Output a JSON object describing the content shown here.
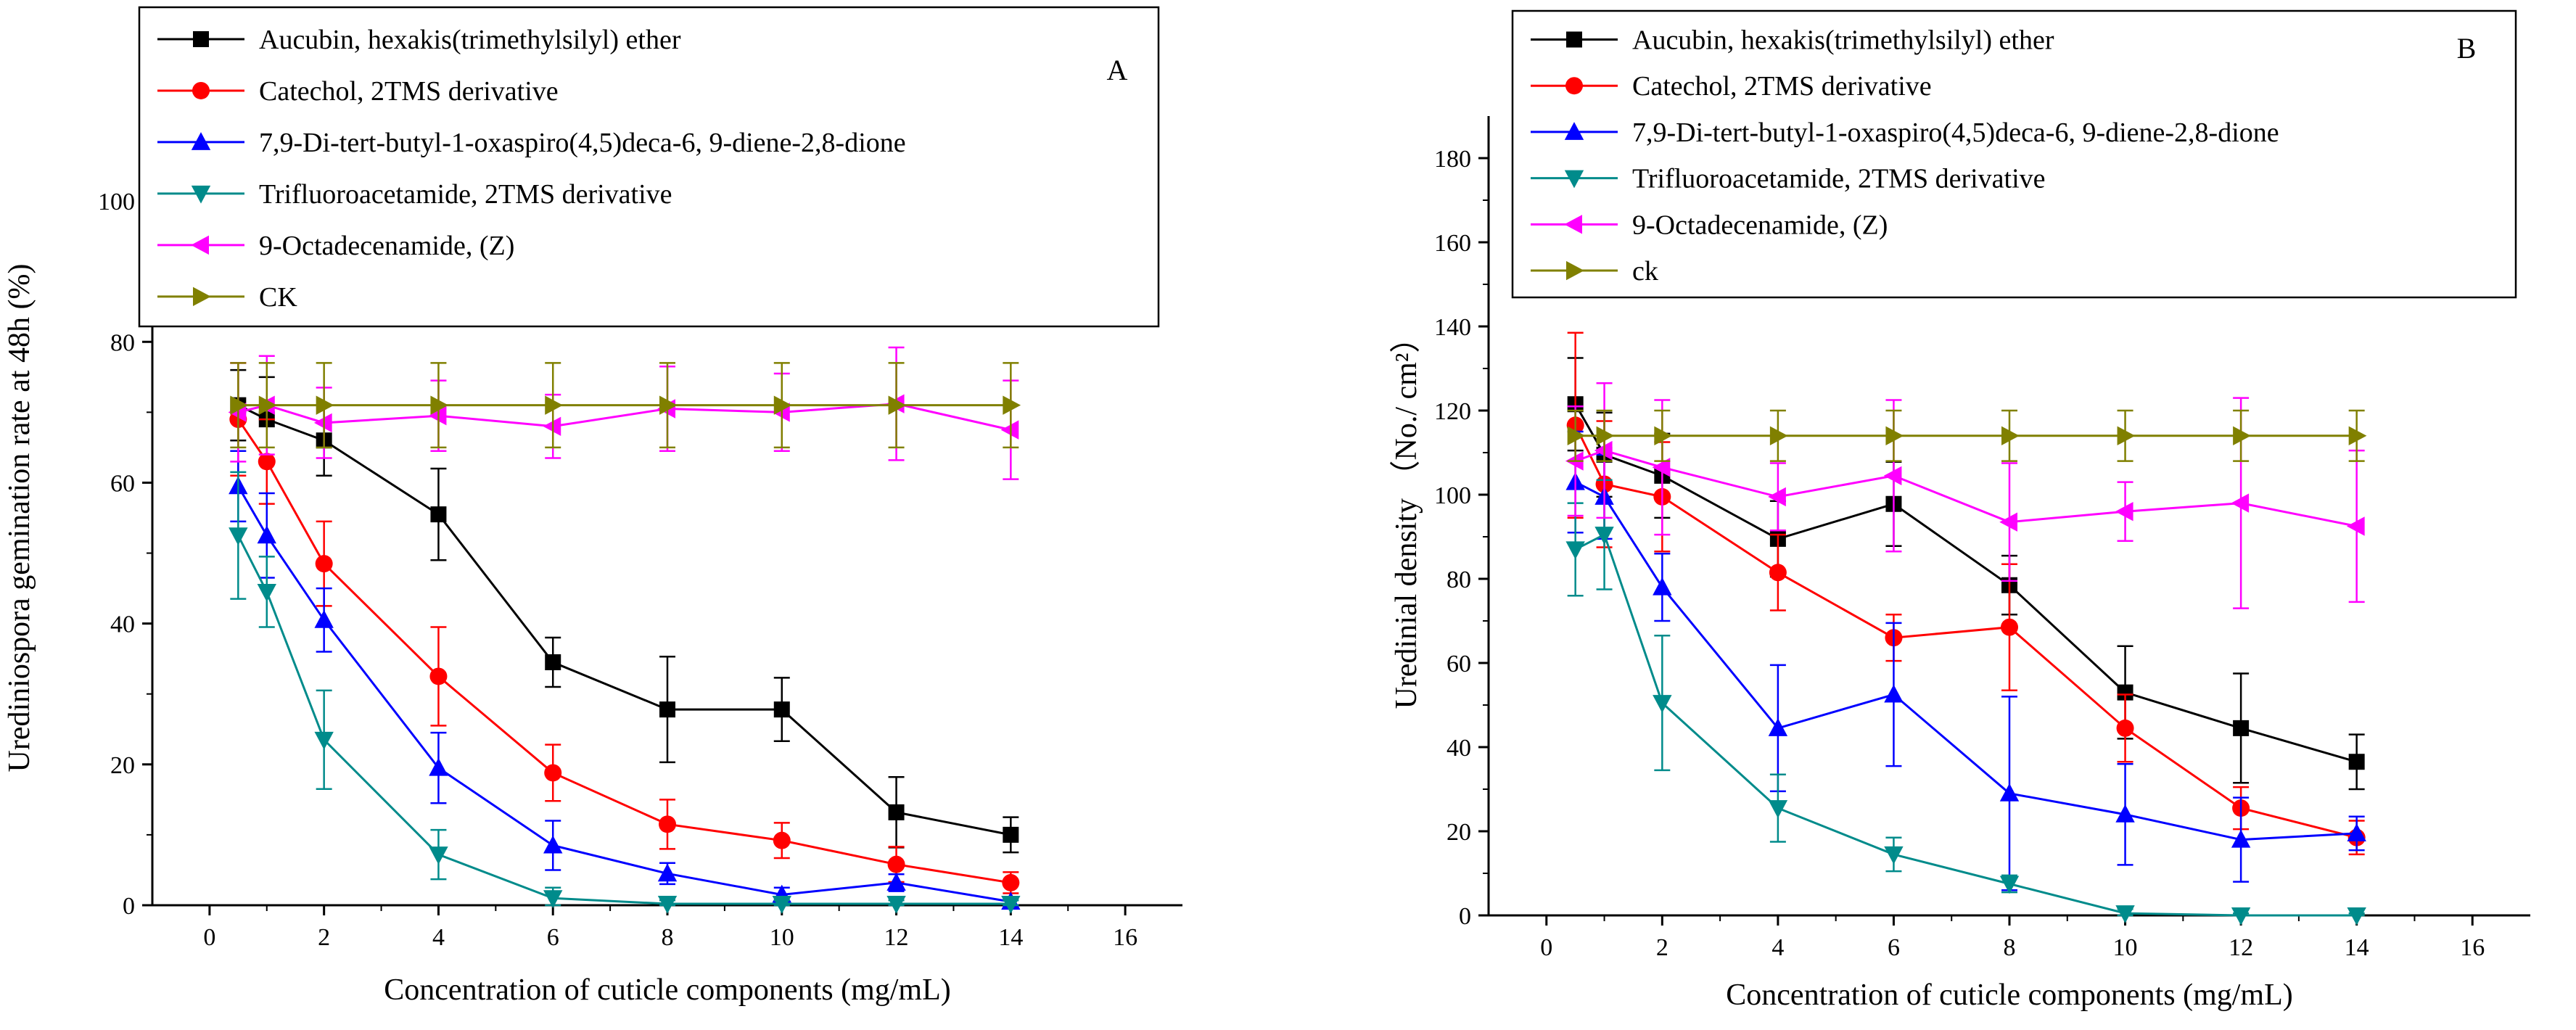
{
  "chart_data": [
    {
      "type": "line",
      "panel_label": "A",
      "title": "",
      "xlabel": "Concentration of cuticle components (mg/mL)",
      "ylabel": "Urediniospora gemination rate at 48h (%)",
      "xlim": [
        -1,
        17
      ],
      "ylim": [
        0,
        110
      ],
      "xticks": [
        "0",
        "2",
        "4",
        "6",
        "8",
        "10",
        "12",
        "14",
        "16"
      ],
      "yticks": [
        "0",
        "20",
        "40",
        "60",
        "80",
        "100"
      ],
      "legend_position": "top",
      "x": [
        0.5,
        1,
        2,
        4,
        6,
        8,
        10,
        12,
        14
      ],
      "series": [
        {
          "name": "Aucubin, hexakis(trimethylsilyl) ether",
          "color": "#000000",
          "marker": "square",
          "values": [
            71,
            69,
            66,
            55.5,
            34.5,
            27.8,
            27.8,
            13.2,
            10
          ],
          "errors": [
            5,
            6,
            5,
            6.5,
            3.5,
            7.5,
            4.5,
            5,
            2.5
          ]
        },
        {
          "name": "Catechol, 2TMS derivative",
          "color": "#ff0000",
          "marker": "circle",
          "values": [
            69,
            63,
            48.5,
            32.5,
            18.8,
            11.5,
            9.2,
            5.8,
            3.2
          ],
          "errors": [
            8,
            6,
            6,
            7,
            4,
            3.5,
            2.5,
            2.5,
            1.5
          ]
        },
        {
          "name": "7,9-Di-tert-butyl-1-oxaspiro(4,5)deca-6, 9-diene-2,8-dione",
          "color": "#0000ff",
          "marker": "triangle-up",
          "values": [
            59.5,
            52.5,
            40.5,
            19.5,
            8.5,
            4.5,
            1.5,
            3.2,
            0.5
          ],
          "errors": [
            5,
            6,
            4.5,
            5,
            3.5,
            1.5,
            1,
            1.2,
            0.5
          ]
        },
        {
          "name": "Trifluoroacetamide, 2TMS derivative",
          "color": "#008b8b",
          "marker": "triangle-down",
          "values": [
            52.5,
            44.5,
            23.5,
            7.2,
            1,
            0.2,
            0.2,
            0.2,
            0.2
          ],
          "errors": [
            9,
            5,
            7,
            3.5,
            1.5,
            0.5,
            0.5,
            0.5,
            0.5
          ]
        },
        {
          "name": "9-Octadecenamide, (Z)",
          "color": "#ff00ff",
          "marker": "triangle-left",
          "values": [
            70,
            71,
            68.5,
            69.5,
            68,
            70.5,
            70,
            71.2,
            67.5
          ],
          "errors": [
            7,
            7,
            5,
            5,
            4.5,
            6,
            5.5,
            8,
            7
          ]
        },
        {
          "name": "CK",
          "color": "#808000",
          "marker": "triangle-right",
          "values": [
            71,
            71,
            71,
            71,
            71,
            71,
            71,
            71,
            71
          ],
          "errors": [
            6,
            6,
            6,
            6,
            6,
            6,
            6,
            6,
            6
          ]
        }
      ]
    },
    {
      "type": "line",
      "panel_label": "B",
      "title": "",
      "xlabel": "Concentration of cuticle components (mg/mL)",
      "ylabel": "Uredinial density （No./ cm²）",
      "xlim": [
        -1,
        17
      ],
      "ylim": [
        0,
        190
      ],
      "xticks": [
        "0",
        "2",
        "4",
        "6",
        "8",
        "10",
        "12",
        "14",
        "16"
      ],
      "yticks": [
        "0",
        "20",
        "40",
        "60",
        "80",
        "100",
        "120",
        "140",
        "160",
        "180"
      ],
      "legend_position": "top",
      "x": [
        0.5,
        1,
        2,
        4,
        6,
        8,
        10,
        12,
        14
      ],
      "series": [
        {
          "name": "Aucubin, hexakis(trimethylsilyl) ether",
          "color": "#000000",
          "marker": "square",
          "values": [
            121.5,
            109.5,
            104.5,
            89.5,
            97.8,
            78.5,
            53,
            44.5,
            36.5
          ],
          "errors": [
            11,
            10,
            10,
            9,
            10,
            7,
            11,
            13,
            6.5
          ]
        },
        {
          "name": "Catechol, 2TMS derivative",
          "color": "#ff0000",
          "marker": "circle",
          "values": [
            116.5,
            102.5,
            99.5,
            81.5,
            66,
            68.5,
            44.5,
            25.5,
            18.5
          ],
          "errors": [
            22,
            15,
            13,
            9,
            5.5,
            15,
            8,
            5,
            4
          ]
        },
        {
          "name": "7,9-Di-tert-butyl-1-oxaspiro(4,5)deca-6, 9-diene-2,8-dione",
          "color": "#0000ff",
          "marker": "triangle-up",
          "values": [
            103,
            99.5,
            78,
            44.5,
            52.5,
            29,
            24,
            18,
            19.5
          ],
          "errors": [
            12,
            10,
            8,
            15,
            17,
            23,
            12,
            10,
            4
          ]
        },
        {
          "name": "Trifluoroacetamide, 2TMS derivative",
          "color": "#008b8b",
          "marker": "triangle-down",
          "values": [
            87,
            90.5,
            50.5,
            25.5,
            14.5,
            7.5,
            0.5,
            0,
            0
          ],
          "errors": [
            11,
            13,
            16,
            8,
            4,
            2,
            1,
            0.5,
            0.5
          ]
        },
        {
          "name": "9-Octadecenamide, (Z)",
          "color": "#ff00ff",
          "marker": "triangle-left",
          "values": [
            108,
            110.5,
            106.5,
            99.5,
            104.5,
            93.5,
            96,
            98,
            92.5
          ],
          "errors": [
            13,
            16,
            16,
            8,
            18,
            14,
            7,
            25,
            18
          ]
        },
        {
          "name": "ck",
          "color": "#808000",
          "marker": "triangle-right",
          "values": [
            114,
            114,
            114,
            114,
            114,
            114,
            114,
            114,
            114
          ],
          "errors": [
            6,
            6,
            6,
            6,
            6,
            6,
            6,
            6,
            6
          ]
        }
      ]
    }
  ]
}
